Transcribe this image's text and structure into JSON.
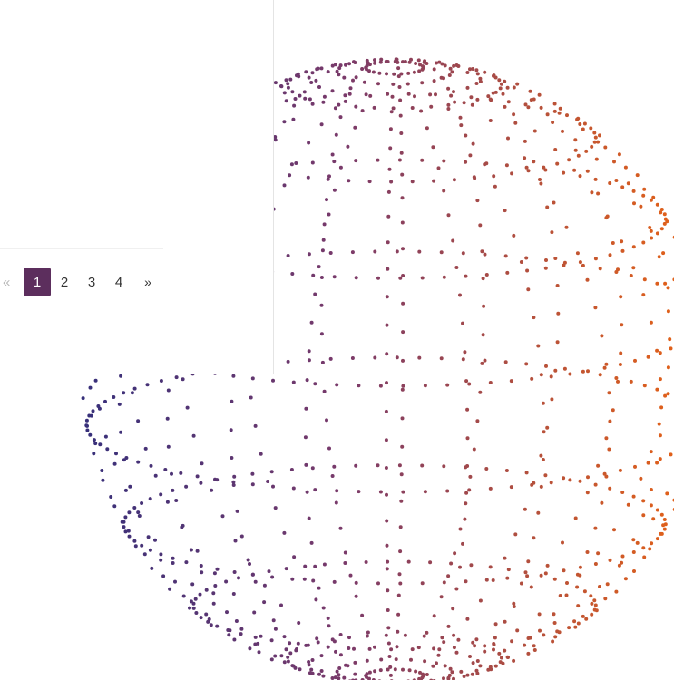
{
  "pagination": {
    "prev_label": "«",
    "next_label": "»",
    "pages": [
      "1",
      "2",
      "3",
      "4"
    ],
    "active_page": "1"
  },
  "visualization": {
    "type": "sphere-point-cloud",
    "color_start": "#262d7e",
    "color_mid": "#7a3a6a",
    "color_end": "#e0601a"
  }
}
